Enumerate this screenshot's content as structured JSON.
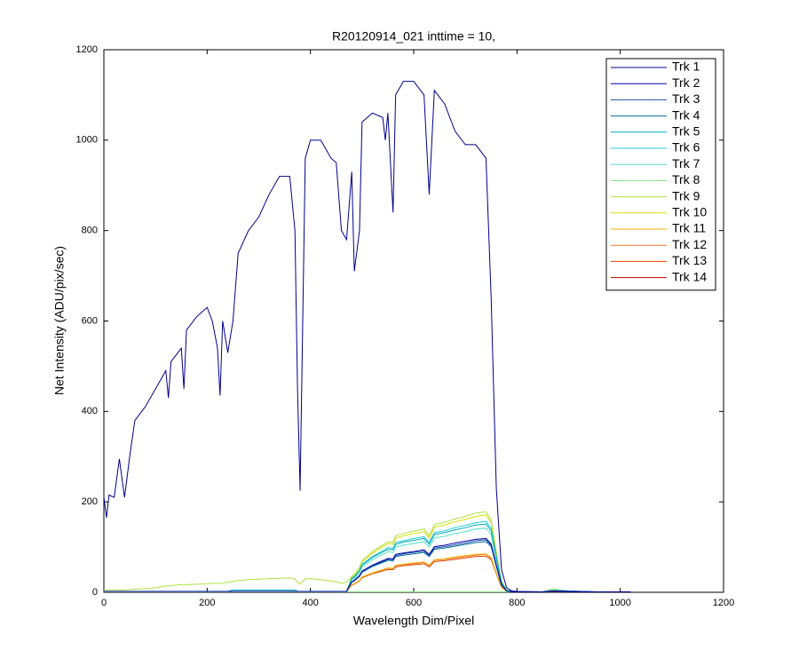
{
  "chart_data": {
    "type": "line",
    "title": "R20120914_021 inttime = 10,",
    "x_label": "Wavelength Dim/Pixel",
    "y_label": "Net Intensity (ADU/pix/sec)",
    "xlim": [
      0,
      1200
    ],
    "ylim": [
      0,
      1200
    ],
    "xticks": [
      0,
      200,
      400,
      600,
      800,
      1000,
      1200
    ],
    "yticks": [
      0,
      200,
      400,
      600,
      800,
      1000,
      1200
    ],
    "legend": "top-right",
    "x": [
      0,
      5,
      10,
      20,
      30,
      40,
      50,
      60,
      80,
      100,
      120,
      125,
      130,
      150,
      155,
      160,
      180,
      200,
      210,
      220,
      225,
      230,
      240,
      250,
      260,
      280,
      300,
      320,
      340,
      360,
      370,
      375,
      380,
      390,
      400,
      420,
      440,
      450,
      460,
      470,
      480,
      485,
      495,
      500,
      520,
      540,
      545,
      550,
      560,
      565,
      580,
      600,
      620,
      630,
      640,
      660,
      680,
      700,
      720,
      740,
      750,
      760,
      770,
      780,
      790,
      800,
      850,
      870,
      900,
      950,
      1000,
      1020
    ],
    "series": [
      {
        "name": "Trk 1",
        "color": "#00008b",
        "values": [
          210,
          165,
          215,
          210,
          295,
          210,
          300,
          380,
          410,
          450,
          490,
          430,
          510,
          540,
          450,
          580,
          610,
          630,
          600,
          540,
          435,
          600,
          530,
          600,
          750,
          800,
          830,
          880,
          920,
          920,
          800,
          450,
          225,
          960,
          1000,
          1000,
          960,
          950,
          800,
          780,
          930,
          710,
          800,
          1040,
          1060,
          1050,
          1000,
          1060,
          840,
          1100,
          1130,
          1130,
          1100,
          880,
          1110,
          1080,
          1020,
          990,
          990,
          960,
          650,
          230,
          50,
          10,
          3,
          2,
          1,
          2,
          1,
          1,
          1,
          1
        ]
      },
      {
        "name": "Trk 2",
        "color": "#0000a8",
        "values": [
          2,
          2,
          2,
          2,
          2,
          2,
          2,
          2,
          2,
          2,
          2,
          2,
          2,
          2,
          2,
          2,
          2,
          2,
          2,
          2,
          2,
          2,
          2,
          2,
          2,
          2,
          2,
          2,
          2,
          2,
          2,
          2,
          2,
          2,
          2,
          2,
          2,
          2,
          2,
          2,
          23,
          27,
          37,
          47,
          60,
          70,
          72,
          75,
          74,
          84,
          87,
          90,
          94,
          84,
          101,
          104,
          109,
          113,
          117,
          119,
          107,
          60,
          17,
          3,
          1,
          1,
          1,
          3,
          2,
          1,
          1,
          1
        ]
      },
      {
        "name": "Trk 3",
        "color": "#1f4fa8",
        "values": [
          2,
          2,
          2,
          2,
          2,
          2,
          2,
          2,
          2,
          2,
          2,
          2,
          2,
          2,
          2,
          2,
          2,
          2,
          2,
          2,
          2,
          2,
          2,
          2,
          2,
          2,
          2,
          2,
          2,
          2,
          2,
          2,
          2,
          2,
          2,
          2,
          2,
          2,
          2,
          2,
          23,
          26,
          36,
          46,
          59,
          68,
          70,
          73,
          72,
          81,
          85,
          88,
          91,
          81,
          98,
          101,
          105,
          109,
          114,
          116,
          104,
          59,
          16,
          3,
          1,
          1,
          1,
          3,
          2,
          1,
          1,
          1
        ]
      },
      {
        "name": "Trk 4",
        "color": "#00709a",
        "values": [
          2,
          2,
          2,
          2,
          2,
          2,
          2,
          2,
          2,
          2,
          2,
          2,
          2,
          2,
          2,
          2,
          2,
          2,
          2,
          2,
          2,
          2,
          2,
          2,
          2,
          2,
          2,
          2,
          2,
          2,
          2,
          2,
          2,
          2,
          2,
          2,
          2,
          2,
          2,
          2,
          22,
          25,
          35,
          44,
          57,
          66,
          68,
          71,
          69,
          79,
          82,
          85,
          88,
          79,
          95,
          98,
          102,
          106,
          110,
          112,
          101,
          57,
          16,
          3,
          1,
          1,
          1,
          3,
          2,
          1,
          1,
          1
        ]
      },
      {
        "name": "Trk 5",
        "color": "#00a8b8",
        "values": [
          2,
          2,
          2,
          2,
          2,
          2,
          2,
          2,
          2,
          2,
          2,
          2,
          2,
          2,
          2,
          2,
          2,
          2,
          2,
          2,
          2,
          2,
          2,
          5,
          5,
          5,
          5,
          5,
          5,
          5,
          5,
          2,
          2,
          2,
          2,
          2,
          2,
          2,
          2,
          2,
          30,
          34,
          47,
          60,
          77,
          89,
          92,
          95,
          94,
          106,
          111,
          115,
          119,
          106,
          128,
          132,
          138,
          143,
          149,
          151,
          136,
          77,
          21,
          4,
          2,
          1,
          1,
          4,
          3,
          1,
          1,
          1
        ]
      },
      {
        "name": "Trk 6",
        "color": "#20cccc",
        "values": [
          2,
          2,
          2,
          2,
          2,
          2,
          2,
          2,
          2,
          2,
          2,
          2,
          2,
          2,
          2,
          2,
          2,
          2,
          2,
          2,
          2,
          2,
          2,
          5,
          5,
          5,
          5,
          5,
          5,
          5,
          5,
          2,
          2,
          2,
          2,
          2,
          2,
          2,
          2,
          2,
          31,
          35,
          48,
          62,
          79,
          92,
          95,
          99,
          97,
          110,
          114,
          119,
          123,
          110,
          132,
          136,
          143,
          148,
          154,
          157,
          141,
          79,
          22,
          4,
          2,
          1,
          1,
          4,
          3,
          1,
          1,
          1
        ]
      },
      {
        "name": "Trk 7",
        "color": "#50e0c8",
        "values": [
          2,
          2,
          2,
          2,
          2,
          2,
          2,
          2,
          2,
          2,
          2,
          2,
          2,
          2,
          2,
          2,
          2,
          2,
          2,
          2,
          2,
          2,
          2,
          2,
          2,
          2,
          2,
          2,
          2,
          2,
          2,
          2,
          2,
          2,
          2,
          2,
          2,
          2,
          2,
          2,
          28,
          32,
          44,
          56,
          72,
          84,
          86,
          90,
          88,
          100,
          104,
          108,
          112,
          100,
          120,
          124,
          130,
          134,
          140,
          142,
          128,
          72,
          20,
          4,
          2,
          1,
          1,
          4,
          2,
          1,
          1,
          1
        ]
      },
      {
        "name": "Trk 8",
        "color": "#80e080",
        "values": [
          1,
          1,
          1,
          1,
          1,
          1,
          1,
          1,
          1,
          1,
          1,
          1,
          1,
          1,
          1,
          1,
          1,
          1,
          1,
          1,
          1,
          1,
          1,
          1,
          1,
          1,
          1,
          1,
          1,
          1,
          1,
          1,
          1,
          1,
          1,
          1,
          1,
          1,
          1,
          1,
          1,
          1,
          1,
          1,
          1,
          1,
          1,
          1,
          1,
          1,
          1,
          1,
          1,
          1,
          1,
          1,
          1,
          1,
          1,
          1,
          1,
          1,
          1,
          1,
          1,
          1,
          1,
          8,
          1,
          1,
          1,
          1
        ]
      },
      {
        "name": "Trk 9",
        "color": "#b0e040",
        "values": [
          5,
          5,
          5,
          5,
          5,
          5,
          6,
          7,
          8,
          10,
          14,
          14,
          15,
          17,
          16,
          17,
          18,
          19,
          20,
          20,
          19,
          21,
          22,
          24,
          26,
          28,
          29,
          30,
          31,
          32,
          30,
          22,
          18,
          30,
          30,
          28,
          25,
          23,
          20,
          22,
          35,
          40,
          55,
          70,
          90,
          105,
          108,
          112,
          110,
          125,
          130,
          135,
          140,
          125,
          150,
          155,
          162,
          168,
          175,
          178,
          160,
          90,
          25,
          5,
          2,
          1,
          1,
          5,
          3,
          1,
          1,
          1
        ]
      },
      {
        "name": "Trk 10",
        "color": "#dcdc00",
        "values": [
          2,
          2,
          2,
          2,
          2,
          2,
          2,
          2,
          2,
          2,
          2,
          2,
          2,
          2,
          2,
          2,
          2,
          2,
          2,
          2,
          2,
          2,
          2,
          2,
          2,
          2,
          2,
          2,
          2,
          2,
          2,
          2,
          2,
          2,
          2,
          2,
          2,
          2,
          2,
          2,
          34,
          38,
          53,
          67,
          86,
          101,
          104,
          108,
          106,
          120,
          125,
          130,
          134,
          120,
          144,
          149,
          156,
          161,
          168,
          171,
          154,
          86,
          24,
          5,
          2,
          1,
          1,
          5,
          3,
          1,
          1,
          1
        ]
      },
      {
        "name": "Trk 11",
        "color": "#f0b000",
        "values": [
          2,
          2,
          2,
          2,
          2,
          2,
          2,
          2,
          2,
          2,
          2,
          2,
          2,
          2,
          2,
          2,
          2,
          2,
          2,
          2,
          2,
          2,
          2,
          2,
          2,
          2,
          2,
          2,
          2,
          2,
          2,
          2,
          2,
          2,
          2,
          2,
          2,
          2,
          2,
          2,
          17,
          19,
          26,
          34,
          43,
          50,
          52,
          54,
          53,
          60,
          62,
          65,
          67,
          60,
          72,
          74,
          78,
          81,
          84,
          85,
          77,
          43,
          12,
          2,
          1,
          1,
          1,
          2,
          1,
          1,
          1,
          1
        ]
      },
      {
        "name": "Trk 12",
        "color": "#f07830",
        "values": [
          2,
          2,
          2,
          2,
          2,
          2,
          2,
          2,
          2,
          2,
          2,
          2,
          2,
          2,
          2,
          2,
          2,
          2,
          2,
          2,
          2,
          2,
          2,
          2,
          2,
          2,
          2,
          2,
          2,
          2,
          2,
          2,
          2,
          2,
          2,
          2,
          2,
          2,
          2,
          2,
          16,
          19,
          26,
          33,
          42,
          49,
          51,
          53,
          52,
          59,
          61,
          63,
          66,
          59,
          71,
          73,
          76,
          79,
          82,
          84,
          75,
          42,
          12,
          2,
          1,
          1,
          1,
          2,
          1,
          1,
          1,
          1
        ]
      },
      {
        "name": "Trk 13",
        "color": "#e04000",
        "values": [
          2,
          2,
          2,
          2,
          2,
          2,
          2,
          2,
          2,
          2,
          2,
          2,
          2,
          2,
          2,
          2,
          2,
          2,
          2,
          2,
          2,
          2,
          2,
          2,
          2,
          2,
          2,
          2,
          2,
          2,
          2,
          2,
          2,
          2,
          2,
          2,
          2,
          2,
          2,
          2,
          16,
          18,
          25,
          32,
          41,
          47,
          49,
          50,
          50,
          56,
          59,
          61,
          63,
          56,
          68,
          70,
          73,
          76,
          79,
          80,
          72,
          41,
          11,
          2,
          1,
          1,
          1,
          2,
          1,
          1,
          1,
          1
        ]
      },
      {
        "name": "Trk 14",
        "color": "#c00000",
        "values": [
          1,
          1,
          1,
          1,
          1,
          1,
          1,
          1,
          1,
          1,
          1,
          1,
          1,
          1,
          1,
          1,
          1,
          1,
          1,
          1,
          1,
          1,
          1,
          1,
          1,
          1,
          1,
          1,
          1,
          1,
          1,
          1,
          1,
          1,
          1,
          1,
          1,
          1,
          1,
          1,
          1,
          1,
          1,
          1,
          1,
          1,
          1,
          1,
          1,
          1,
          1,
          1,
          1,
          1,
          1,
          1,
          1,
          1,
          1,
          1,
          1,
          1,
          1,
          1,
          1,
          1,
          1,
          1,
          1,
          1,
          1,
          1
        ]
      }
    ]
  }
}
